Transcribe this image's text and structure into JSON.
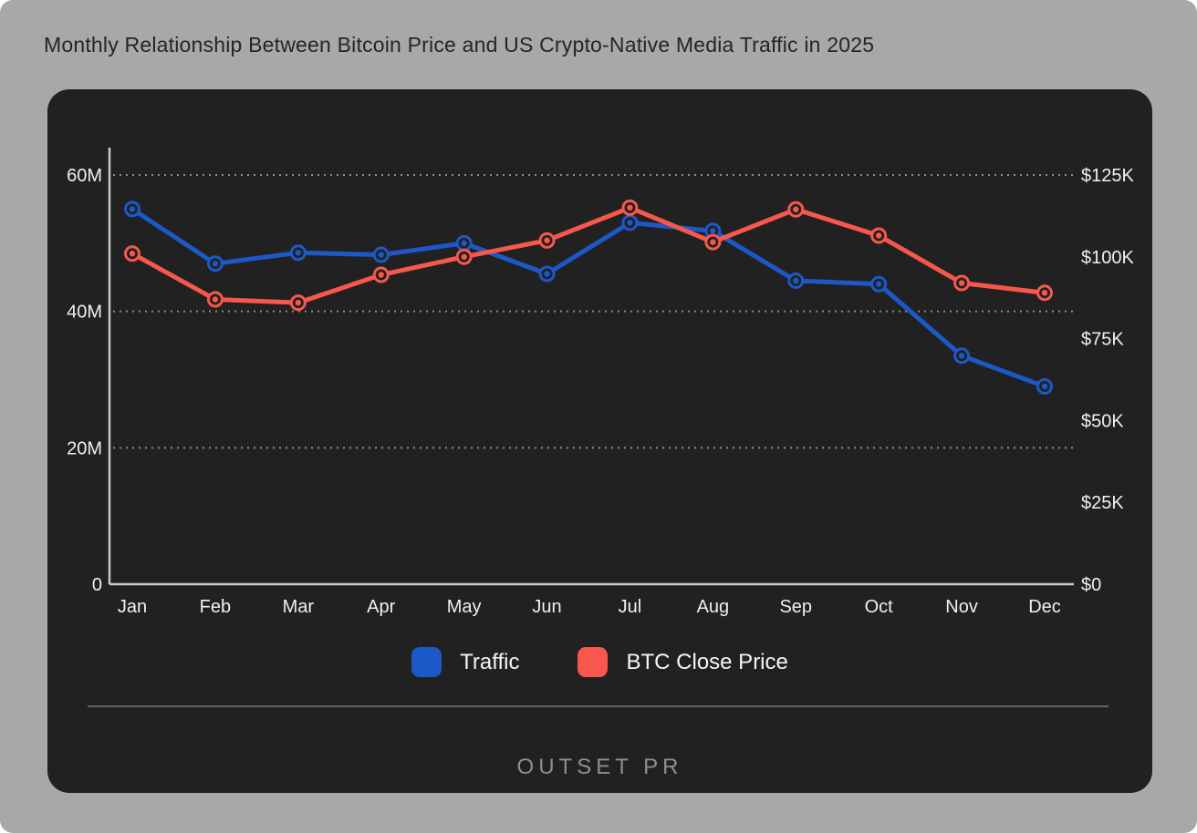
{
  "page": {
    "title": "Monthly Relationship Between Bitcoin Price and US Crypto-Native Media Traffic in 2025",
    "logo": "OUTSET PR"
  },
  "colors": {
    "page_bg": "#a8a8a8",
    "card_bg": "#212121",
    "title_text": "#252525",
    "axis_line": "#c9c9c9",
    "gridline": "#98989a",
    "axis_text": "#f0f0f0",
    "legend_text": "#f5f5f5",
    "divider": "#646464",
    "logo_text": "#8f8f8f",
    "traffic_blue": "#1c58c8",
    "btc_red": "#f7574c"
  },
  "legend": [
    {
      "label": "Traffic",
      "color": "#1c58c8"
    },
    {
      "label": "BTC Close Price",
      "color": "#f7574c"
    }
  ],
  "chart_data": {
    "type": "line",
    "title": "Monthly Relationship Between Bitcoin Price and US Crypto-Native Media Traffic in 2025",
    "categories": [
      "Jan",
      "Feb",
      "Mar",
      "Apr",
      "May",
      "Jun",
      "Jul",
      "Aug",
      "Sep",
      "Oct",
      "Nov",
      "Dec"
    ],
    "series": [
      {
        "name": "Traffic",
        "axis": "left",
        "color": "#1c58c8",
        "unit": "M visits",
        "values": [
          55,
          47,
          48.6,
          48.3,
          50,
          45.5,
          53,
          51.8,
          44.5,
          44,
          33.5,
          29
        ]
      },
      {
        "name": "BTC Close Price",
        "axis": "right",
        "color": "#f7574c",
        "unit": "K USD",
        "values": [
          101,
          87,
          86,
          94.5,
          100,
          105,
          115,
          104.5,
          114.5,
          106.5,
          92,
          89
        ]
      }
    ],
    "left_axis": {
      "max": 60,
      "ticks": [
        {
          "label": "0",
          "value": 0
        },
        {
          "label": "20M",
          "value": 20
        },
        {
          "label": "40M",
          "value": 40
        },
        {
          "label": "60M",
          "value": 60
        }
      ]
    },
    "right_axis": {
      "max": 125,
      "ticks": [
        {
          "label": "$0",
          "value": 0
        },
        {
          "label": "$25K",
          "value": 25
        },
        {
          "label": "$50K",
          "value": 50
        },
        {
          "label": "$75K",
          "value": 75
        },
        {
          "label": "$100K",
          "value": 100
        },
        {
          "label": "$125K",
          "value": 125
        }
      ]
    },
    "gridlines_left_values": [
      20,
      40,
      60
    ],
    "grid_style": "dotted horizontal",
    "legend_position": "bottom-center"
  }
}
